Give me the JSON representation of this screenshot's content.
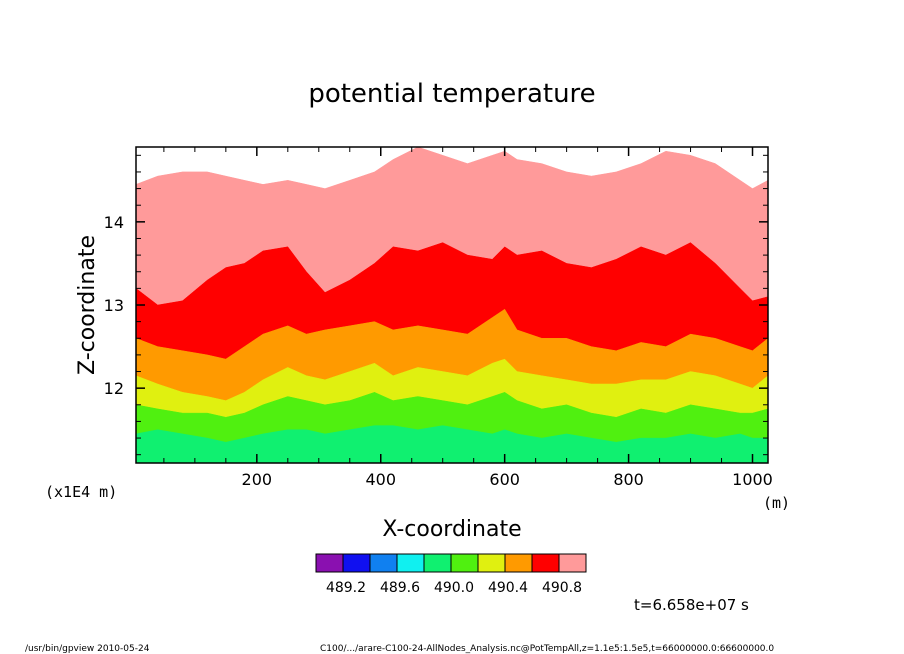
{
  "window": {
    "footer_left": "/usr/bin/gpview   2010-05-24",
    "footer_right": "C100/.../arare-C100-24-AllNodes_Analysis.nc@PotTempAll,z=1.1e5:1.5e5,t=66000000.0:66600000.0"
  },
  "chart_data": {
    "type": "area",
    "title": "potential temperature",
    "xlabel": "X-coordinate",
    "ylabel": "Z-coordinate",
    "x_unit": "(m)",
    "y_unit": "(x1E4 m)",
    "xlim": [
      5,
      1025
    ],
    "ylim": [
      11.1,
      14.9
    ],
    "x_ticks": [
      200,
      400,
      600,
      800,
      1000
    ],
    "x_tick_labels": [
      "200",
      "400",
      "600",
      "800",
      "1000"
    ],
    "y_ticks": [
      12,
      13,
      14
    ],
    "y_tick_labels": [
      "12",
      "13",
      "14"
    ],
    "annotation": "t=6.658e+07 s",
    "grid": false,
    "colorbar": {
      "colors": [
        "#8a10b0",
        "#1010f0",
        "#1080f0",
        "#10f0f0",
        "#10f070",
        "#50f010",
        "#e0f010",
        "#ff9a00",
        "#ff0000",
        "#ff9a9a"
      ],
      "labels": [
        "489.2",
        "489.6",
        "490.0",
        "490.4",
        "490.8"
      ]
    },
    "x": [
      5,
      40,
      80,
      120,
      150,
      180,
      210,
      250,
      280,
      310,
      350,
      390,
      420,
      460,
      500,
      540,
      580,
      600,
      620,
      660,
      700,
      740,
      780,
      820,
      860,
      900,
      940,
      980,
      1000,
      1025
    ],
    "bands": [
      {
        "color": "#ff9a9a",
        "top": [
          14.45,
          14.55,
          14.6,
          14.6,
          14.55,
          14.5,
          14.45,
          14.5,
          14.45,
          14.4,
          14.5,
          14.6,
          14.75,
          14.9,
          14.8,
          14.7,
          14.8,
          14.85,
          14.75,
          14.7,
          14.6,
          14.55,
          14.6,
          14.7,
          14.85,
          14.8,
          14.7,
          14.5,
          14.4,
          14.5
        ]
      },
      {
        "color": "#ff0000",
        "top": [
          13.2,
          13.0,
          13.05,
          13.3,
          13.45,
          13.5,
          13.65,
          13.7,
          13.4,
          13.15,
          13.3,
          13.5,
          13.7,
          13.65,
          13.75,
          13.6,
          13.55,
          13.7,
          13.6,
          13.65,
          13.5,
          13.45,
          13.55,
          13.7,
          13.6,
          13.75,
          13.5,
          13.2,
          13.05,
          13.1
        ]
      },
      {
        "color": "#ff9a00",
        "top": [
          12.6,
          12.5,
          12.45,
          12.4,
          12.35,
          12.5,
          12.65,
          12.75,
          12.65,
          12.7,
          12.75,
          12.8,
          12.7,
          12.75,
          12.7,
          12.65,
          12.85,
          12.95,
          12.7,
          12.6,
          12.6,
          12.5,
          12.45,
          12.55,
          12.5,
          12.65,
          12.6,
          12.5,
          12.45,
          12.6
        ]
      },
      {
        "color": "#e0f010",
        "top": [
          12.15,
          12.05,
          11.95,
          11.9,
          11.85,
          11.95,
          12.1,
          12.25,
          12.15,
          12.1,
          12.2,
          12.3,
          12.15,
          12.25,
          12.2,
          12.15,
          12.3,
          12.35,
          12.2,
          12.15,
          12.1,
          12.05,
          12.05,
          12.1,
          12.1,
          12.2,
          12.15,
          12.05,
          12.0,
          12.15
        ]
      },
      {
        "color": "#50f010",
        "top": [
          11.8,
          11.75,
          11.7,
          11.7,
          11.65,
          11.7,
          11.8,
          11.9,
          11.85,
          11.8,
          11.85,
          11.95,
          11.85,
          11.9,
          11.85,
          11.8,
          11.9,
          11.95,
          11.85,
          11.75,
          11.8,
          11.7,
          11.65,
          11.75,
          11.7,
          11.8,
          11.75,
          11.7,
          11.7,
          11.75
        ]
      },
      {
        "color": "#10f070",
        "top": [
          11.45,
          11.5,
          11.45,
          11.4,
          11.35,
          11.4,
          11.45,
          11.5,
          11.5,
          11.45,
          11.5,
          11.55,
          11.55,
          11.5,
          11.55,
          11.5,
          11.45,
          11.5,
          11.45,
          11.4,
          11.45,
          11.4,
          11.35,
          11.4,
          11.4,
          11.45,
          11.4,
          11.45,
          11.4,
          11.4
        ]
      }
    ]
  }
}
